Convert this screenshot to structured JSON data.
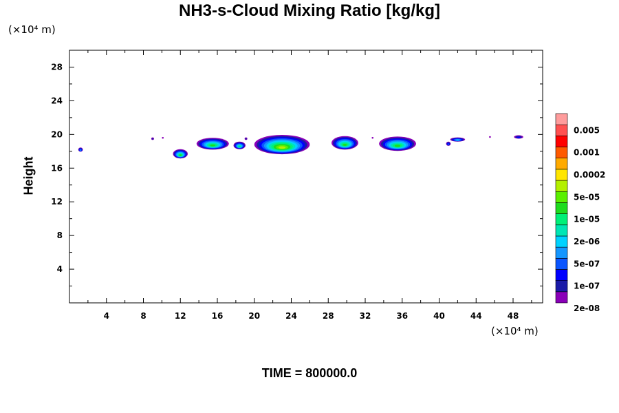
{
  "chart_data": {
    "type": "heatmap",
    "title": "NH3-s-Cloud Mixing Ratio [kg/kg]",
    "ylabel": "Height",
    "x_unit": "(×10⁴ m)",
    "y_unit": "(×10⁴ m)",
    "time_label": "TIME = 800000.0",
    "xlim": [
      0,
      51.2
    ],
    "ylim": [
      0,
      30
    ],
    "x_ticks": [
      4,
      8,
      12,
      16,
      20,
      24,
      28,
      32,
      36,
      40,
      44,
      48
    ],
    "y_ticks": [
      4,
      8,
      12,
      16,
      20,
      24,
      28
    ],
    "colorbar": {
      "labels": [
        "0.005",
        "0.001",
        "0.0002",
        "5e-05",
        "1e-05",
        "2e-06",
        "5e-07",
        "1e-07",
        "2e-08"
      ],
      "colors": [
        "#8a00b8",
        "#1a1aa8",
        "#0000ff",
        "#0a55ff",
        "#1496ff",
        "#00d2ff",
        "#00e6b4",
        "#00f078",
        "#1edc1e",
        "#5af000",
        "#b4f000",
        "#ffe600",
        "#ffaa00",
        "#ff5a00",
        "#ff0000",
        "#ff5050",
        "#ff9c9c"
      ]
    },
    "cloud_blobs": [
      {
        "x": 1.2,
        "y": 18.2,
        "w": 0.5,
        "h": 0.5,
        "level": 4
      },
      {
        "x": 9.0,
        "y": 19.5,
        "w": 0.3,
        "h": 0.3,
        "level": 1
      },
      {
        "x": 10.1,
        "y": 19.6,
        "w": 0.2,
        "h": 0.2,
        "level": 0
      },
      {
        "x": 12.0,
        "y": 17.7,
        "w": 1.6,
        "h": 1.1,
        "level": 8
      },
      {
        "x": 15.5,
        "y": 18.9,
        "w": 3.5,
        "h": 1.4,
        "level": 8
      },
      {
        "x": 18.4,
        "y": 18.7,
        "w": 1.3,
        "h": 0.9,
        "level": 7
      },
      {
        "x": 19.1,
        "y": 19.5,
        "w": 0.3,
        "h": 0.3,
        "level": 1
      },
      {
        "x": 23.0,
        "y": 18.8,
        "w": 6.0,
        "h": 2.3,
        "level": 10
      },
      {
        "x": 29.8,
        "y": 19.0,
        "w": 2.9,
        "h": 1.6,
        "level": 8
      },
      {
        "x": 32.8,
        "y": 19.6,
        "w": 0.2,
        "h": 0.2,
        "level": 0
      },
      {
        "x": 35.5,
        "y": 18.9,
        "w": 4.0,
        "h": 1.7,
        "level": 8
      },
      {
        "x": 41.0,
        "y": 18.9,
        "w": 0.5,
        "h": 0.5,
        "level": 3
      },
      {
        "x": 42.0,
        "y": 19.4,
        "w": 1.6,
        "h": 0.5,
        "level": 5
      },
      {
        "x": 45.5,
        "y": 19.7,
        "w": 0.2,
        "h": 0.2,
        "level": 0
      },
      {
        "x": 48.6,
        "y": 19.7,
        "w": 1.0,
        "h": 0.4,
        "level": 2
      }
    ]
  }
}
